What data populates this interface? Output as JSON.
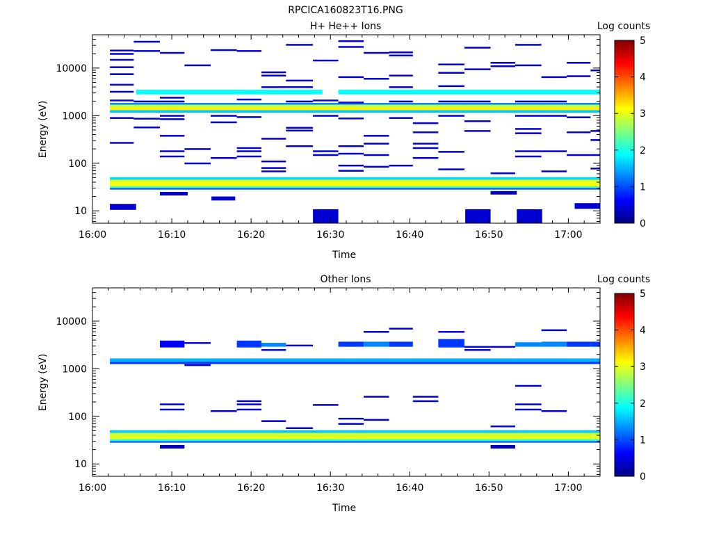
{
  "figure_title": "RPCICA160823T16.PNG",
  "colorbar_colors": [
    "#00007f",
    "#0000ff",
    "#007fff",
    "#00ffff",
    "#7fff7f",
    "#ffff00",
    "#ff7f00",
    "#ff0000",
    "#7f0000"
  ],
  "chart_data": [
    {
      "type": "heatmap",
      "title": "H+ He++ Ions",
      "xlabel": "Time",
      "ylabel": "Energy (eV)",
      "colorbar_label": "Log counts",
      "x_ticks": [
        "16:00",
        "16:10",
        "16:20",
        "16:30",
        "16:40",
        "16:50",
        "17:00"
      ],
      "x_range_min": [
        0,
        64
      ],
      "y_ticks": [
        "10",
        "100",
        "1000",
        "10000"
      ],
      "y_range_eV": [
        5.5,
        50000
      ],
      "y_scale": "log",
      "colorbar_ticks": [
        "0",
        "1",
        "2",
        "3",
        "4",
        "5"
      ],
      "colorbar_range": [
        0,
        5
      ],
      "bands": [
        {
          "x0": 2.2,
          "x1": 64,
          "y0": 28,
          "y1": 33,
          "v": 2.2
        },
        {
          "x0": 2.2,
          "x1": 64,
          "y0": 33,
          "y1": 38,
          "v": 3.1
        },
        {
          "x0": 2.2,
          "x1": 64,
          "y0": 38,
          "y1": 45,
          "v": 3.0
        },
        {
          "x0": 2.2,
          "x1": 64,
          "y0": 45,
          "y1": 51,
          "v": 1.7
        },
        {
          "x0": 2.2,
          "x1": 64,
          "y0": 1150,
          "y1": 1300,
          "v": 1.6
        },
        {
          "x0": 2.2,
          "x1": 64,
          "y0": 1300,
          "y1": 1500,
          "v": 3.2
        },
        {
          "x0": 2.2,
          "x1": 64,
          "y0": 1500,
          "y1": 1700,
          "v": 2.8
        },
        {
          "x0": 2.2,
          "x1": 64,
          "y0": 1700,
          "y1": 1850,
          "v": 1.3
        },
        {
          "x0": 5.5,
          "x1": 29,
          "y0": 2800,
          "y1": 3500,
          "v": 1.9
        },
        {
          "x0": 31,
          "x1": 64,
          "y0": 2800,
          "y1": 3500,
          "v": 1.9
        }
      ],
      "pixels": [
        {
          "x0": 2.2,
          "x1": 5.5,
          "y0": 10.5,
          "y1": 14,
          "v": 0.4
        },
        {
          "x0": 8.5,
          "x1": 12,
          "y0": 21,
          "y1": 25,
          "v": 0.3
        },
        {
          "x0": 15,
          "x1": 18,
          "y0": 16.5,
          "y1": 20,
          "v": 0.4
        },
        {
          "x0": 27.8,
          "x1": 31,
          "y0": 5.6,
          "y1": 10.8,
          "v": 0.4
        },
        {
          "x0": 47,
          "x1": 50.2,
          "y0": 5.6,
          "y1": 10.8,
          "v": 0.4
        },
        {
          "x0": 53.5,
          "x1": 56.7,
          "y0": 5.6,
          "y1": 10.8,
          "v": 0.4
        },
        {
          "x0": 50.2,
          "x1": 53.5,
          "y0": 22,
          "y1": 26,
          "v": 0.3
        },
        {
          "x0": 60.8,
          "x1": 64,
          "y0": 11,
          "y1": 14.5,
          "v": 0.4
        },
        {
          "x0": 2.2,
          "x1": 64,
          "y0": 28,
          "y1": 30,
          "v": 1.0
        }
      ],
      "line_x0": [
        2.2,
        5.2,
        8.5,
        11.6,
        14.9,
        18.2,
        21.3,
        24.4,
        27.8,
        31.0,
        34.2,
        37.4,
        40.4,
        43.6,
        46.9,
        50.2,
        53.3,
        56.6,
        59.8,
        62.8
      ],
      "lines": [
        [
          2.2,
          5.2,
          23500
        ],
        [
          2.2,
          5.2,
          20000
        ],
        [
          2.2,
          5.2,
          15000
        ],
        [
          2.2,
          5.2,
          10500
        ],
        [
          2.2,
          5.2,
          7500
        ],
        [
          2.2,
          5.2,
          4500
        ],
        [
          2.2,
          5.2,
          3200
        ],
        [
          2.2,
          5.2,
          2100
        ],
        [
          2.2,
          5.2,
          900
        ],
        [
          2.2,
          5.2,
          270
        ],
        [
          5.2,
          8.5,
          36000
        ],
        [
          5.2,
          8.5,
          23000
        ],
        [
          5.2,
          8.5,
          2000
        ],
        [
          5.2,
          8.5,
          870
        ],
        [
          5.2,
          8.5,
          570
        ],
        [
          8.5,
          11.6,
          21000
        ],
        [
          8.5,
          11.6,
          2400
        ],
        [
          8.5,
          11.6,
          2000
        ],
        [
          8.5,
          11.6,
          1000
        ],
        [
          8.5,
          11.6,
          850
        ],
        [
          8.5,
          11.6,
          380
        ],
        [
          8.5,
          11.6,
          180
        ],
        [
          8.5,
          11.6,
          140
        ],
        [
          11.6,
          14.9,
          11500
        ],
        [
          11.6,
          14.9,
          200
        ],
        [
          11.6,
          14.9,
          100
        ],
        [
          14.9,
          18.2,
          24000
        ],
        [
          14.9,
          18.2,
          1000
        ],
        [
          14.9,
          18.2,
          730
        ],
        [
          14.9,
          18.2,
          130
        ],
        [
          18.2,
          21.3,
          23000
        ],
        [
          18.2,
          21.3,
          2200
        ],
        [
          18.2,
          21.3,
          940
        ],
        [
          18.2,
          21.3,
          210
        ],
        [
          18.2,
          21.3,
          180
        ],
        [
          18.2,
          21.3,
          140
        ],
        [
          21.3,
          24.4,
          8200
        ],
        [
          21.3,
          24.4,
          7000
        ],
        [
          21.3,
          24.4,
          4000
        ],
        [
          21.3,
          24.4,
          330
        ],
        [
          21.3,
          24.4,
          110
        ],
        [
          21.3,
          24.4,
          80
        ],
        [
          21.3,
          24.4,
          68
        ],
        [
          24.4,
          27.8,
          31000
        ],
        [
          24.4,
          27.8,
          5500
        ],
        [
          24.4,
          27.8,
          4000
        ],
        [
          24.4,
          27.8,
          2000
        ],
        [
          24.4,
          27.8,
          560
        ],
        [
          24.4,
          27.8,
          490
        ],
        [
          24.4,
          27.8,
          230
        ],
        [
          27.8,
          31.0,
          14500
        ],
        [
          27.8,
          31.0,
          2100
        ],
        [
          27.8,
          31.0,
          1000
        ],
        [
          27.8,
          31.0,
          180
        ],
        [
          27.8,
          31.0,
          150
        ],
        [
          31.0,
          34.2,
          37000
        ],
        [
          31.0,
          34.2,
          28000
        ],
        [
          31.0,
          34.2,
          6500
        ],
        [
          31.0,
          34.2,
          1900
        ],
        [
          31.0,
          34.2,
          880
        ],
        [
          31.0,
          34.2,
          230
        ],
        [
          31.0,
          34.2,
          160
        ],
        [
          31.0,
          34.2,
          90
        ],
        [
          31.0,
          34.2,
          70
        ],
        [
          34.2,
          37.4,
          21000
        ],
        [
          34.2,
          37.4,
          6000
        ],
        [
          34.2,
          37.4,
          380
        ],
        [
          34.2,
          37.4,
          260
        ],
        [
          34.2,
          37.4,
          150
        ],
        [
          34.2,
          37.4,
          85
        ],
        [
          37.4,
          40.4,
          21500
        ],
        [
          37.4,
          40.4,
          18500
        ],
        [
          37.4,
          40.4,
          7000
        ],
        [
          37.4,
          40.4,
          4000
        ],
        [
          37.4,
          40.4,
          2000
        ],
        [
          37.4,
          40.4,
          900
        ],
        [
          37.4,
          40.4,
          90
        ],
        [
          40.4,
          43.6,
          700
        ],
        [
          40.4,
          43.6,
          450
        ],
        [
          40.4,
          43.6,
          260
        ],
        [
          40.4,
          43.6,
          210
        ],
        [
          40.4,
          43.6,
          130
        ],
        [
          43.6,
          46.9,
          12000
        ],
        [
          43.6,
          46.9,
          8000
        ],
        [
          43.6,
          46.9,
          4200
        ],
        [
          43.6,
          46.9,
          2000
        ],
        [
          43.6,
          46.9,
          1000
        ],
        [
          43.6,
          46.9,
          175
        ],
        [
          43.6,
          46.9,
          75
        ],
        [
          46.9,
          50.2,
          27000
        ],
        [
          46.9,
          50.2,
          9500
        ],
        [
          46.9,
          50.2,
          2000
        ],
        [
          46.9,
          50.2,
          770
        ],
        [
          46.9,
          50.2,
          480
        ],
        [
          50.2,
          53.3,
          13000
        ],
        [
          50.2,
          53.3,
          11000
        ],
        [
          50.2,
          53.3,
          62
        ],
        [
          53.3,
          56.6,
          31000
        ],
        [
          53.3,
          56.6,
          11500
        ],
        [
          53.3,
          56.6,
          2000
        ],
        [
          53.3,
          56.6,
          1000
        ],
        [
          53.3,
          56.6,
          530
        ],
        [
          53.3,
          56.6,
          430
        ],
        [
          53.3,
          56.6,
          180
        ],
        [
          53.3,
          56.6,
          140
        ],
        [
          56.6,
          59.8,
          6500
        ],
        [
          56.6,
          59.8,
          2000
        ],
        [
          56.6,
          59.8,
          1000
        ],
        [
          56.6,
          59.8,
          180
        ],
        [
          56.6,
          59.8,
          68
        ],
        [
          59.8,
          62.8,
          13000
        ],
        [
          59.8,
          62.8,
          6800
        ],
        [
          59.8,
          62.8,
          930
        ],
        [
          59.8,
          62.8,
          450
        ],
        [
          59.8,
          62.8,
          150
        ],
        [
          62.8,
          64.0,
          9000
        ],
        [
          62.8,
          64.0,
          480
        ],
        [
          62.8,
          64.0,
          310
        ],
        [
          62.8,
          64.0,
          150
        ],
        [
          62.8,
          64.0,
          78
        ]
      ]
    },
    {
      "type": "heatmap",
      "title": "Other Ions",
      "xlabel": "Time",
      "ylabel": "Energy (eV)",
      "colorbar_label": "Log counts",
      "x_ticks": [
        "16:00",
        "16:10",
        "16:20",
        "16:30",
        "16:40",
        "16:50",
        "17:00"
      ],
      "x_range_min": [
        0,
        64
      ],
      "y_ticks": [
        "10",
        "100",
        "1000",
        "10000"
      ],
      "y_range_eV": [
        5.5,
        50000
      ],
      "y_scale": "log",
      "colorbar_ticks": [
        "0",
        "1",
        "2",
        "3",
        "4",
        "5"
      ],
      "colorbar_range": [
        0,
        5
      ],
      "bands": [
        {
          "x0": 2.2,
          "x1": 64,
          "y0": 28,
          "y1": 33,
          "v": 2.0
        },
        {
          "x0": 2.2,
          "x1": 64,
          "y0": 33,
          "y1": 38,
          "v": 3.0
        },
        {
          "x0": 2.2,
          "x1": 64,
          "y0": 38,
          "y1": 45,
          "v": 2.9
        },
        {
          "x0": 2.2,
          "x1": 64,
          "y0": 45,
          "y1": 51,
          "v": 1.6
        },
        {
          "x0": 2.2,
          "x1": 64,
          "y0": 1250,
          "y1": 1400,
          "v": 0.9
        },
        {
          "x0": 2.2,
          "x1": 64,
          "y0": 1400,
          "y1": 1650,
          "v": 1.5
        }
      ],
      "pixels": [
        {
          "x0": 8.5,
          "x1": 11.6,
          "y0": 21,
          "y1": 25,
          "v": 0.3
        },
        {
          "x0": 50.2,
          "x1": 53.3,
          "y0": 21,
          "y1": 25,
          "v": 0.3
        },
        {
          "x0": 2.2,
          "x1": 64,
          "y0": 28,
          "y1": 30,
          "v": 1.0
        },
        {
          "x0": 8.5,
          "x1": 11.6,
          "y0": 2800,
          "y1": 3900,
          "v": 0.6
        },
        {
          "x0": 18.2,
          "x1": 21.3,
          "y0": 2800,
          "y1": 3900,
          "v": 0.9
        },
        {
          "x0": 21.3,
          "x1": 24.4,
          "y0": 2900,
          "y1": 3500,
          "v": 1.3
        },
        {
          "x0": 31.0,
          "x1": 34.2,
          "y0": 2900,
          "y1": 3700,
          "v": 0.9
        },
        {
          "x0": 34.2,
          "x1": 37.4,
          "y0": 2900,
          "y1": 3700,
          "v": 1.3
        },
        {
          "x0": 37.4,
          "x1": 40.4,
          "y0": 2900,
          "y1": 3700,
          "v": 0.9
        },
        {
          "x0": 43.6,
          "x1": 46.9,
          "y0": 2800,
          "y1": 4200,
          "v": 0.9
        },
        {
          "x0": 53.3,
          "x1": 56.6,
          "y0": 2900,
          "y1": 3600,
          "v": 1.3
        },
        {
          "x0": 56.6,
          "x1": 59.8,
          "y0": 2900,
          "y1": 3700,
          "v": 1.3
        },
        {
          "x0": 59.8,
          "x1": 62.8,
          "y0": 2900,
          "y1": 3700,
          "v": 0.9
        },
        {
          "x0": 62.8,
          "x1": 64.0,
          "y0": 2900,
          "y1": 3700,
          "v": 0.9
        }
      ],
      "line_x0": [
        2.2,
        5.2,
        8.5,
        11.6,
        14.9,
        18.2,
        21.3,
        24.4,
        27.8,
        31.0,
        34.2,
        37.4,
        40.4,
        43.6,
        46.9,
        50.2,
        53.3,
        56.6,
        59.8,
        62.8
      ],
      "lines": [
        [
          8.5,
          11.6,
          180
        ],
        [
          8.5,
          11.6,
          140
        ],
        [
          11.6,
          14.9,
          3500
        ],
        [
          11.6,
          14.9,
          1200
        ],
        [
          14.9,
          18.2,
          130
        ],
        [
          18.2,
          21.3,
          210
        ],
        [
          18.2,
          21.3,
          180
        ],
        [
          18.2,
          21.3,
          140
        ],
        [
          21.3,
          24.4,
          2500
        ],
        [
          21.3,
          24.4,
          80
        ],
        [
          24.4,
          27.8,
          3100
        ],
        [
          24.4,
          27.8,
          57
        ],
        [
          27.8,
          31.0,
          175
        ],
        [
          31.0,
          34.2,
          90
        ],
        [
          31.0,
          34.2,
          70
        ],
        [
          34.2,
          37.4,
          6000
        ],
        [
          34.2,
          37.4,
          260
        ],
        [
          34.2,
          37.4,
          85
        ],
        [
          37.4,
          40.4,
          7000
        ],
        [
          40.4,
          43.6,
          260
        ],
        [
          40.4,
          43.6,
          210
        ],
        [
          43.6,
          46.9,
          6000
        ],
        [
          46.9,
          50.2,
          2500
        ],
        [
          46.9,
          50.2,
          2900
        ],
        [
          50.2,
          53.3,
          2900
        ],
        [
          50.2,
          53.3,
          62
        ],
        [
          53.3,
          56.6,
          440
        ],
        [
          53.3,
          56.6,
          180
        ],
        [
          53.3,
          56.6,
          140
        ],
        [
          56.6,
          59.8,
          6500
        ],
        [
          56.6,
          59.8,
          130
        ]
      ]
    }
  ]
}
